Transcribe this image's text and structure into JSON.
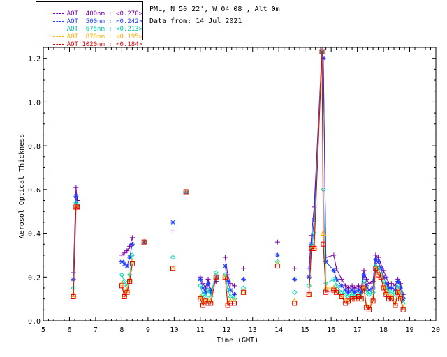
{
  "header": {
    "station": "PML, N 50 22', W 04 08', Alt 0m",
    "date": "Data from: 14 Jul 2021"
  },
  "chart_data": {
    "type": "scatter",
    "title": "",
    "xlabel": "Time (GMT)",
    "ylabel": "Aerosol Optical Thickness",
    "xlim": [
      5,
      20
    ],
    "ylim": [
      0,
      1.25
    ],
    "x_ticks": [
      "5",
      "6",
      "7",
      "8",
      "9",
      "10",
      "11",
      "12",
      "13",
      "14",
      "15",
      "16",
      "17",
      "18",
      "19",
      "20"
    ],
    "y_ticks": [
      "0.0",
      "0.2",
      "0.4",
      "0.6",
      "0.8",
      "1.0",
      "1.2"
    ],
    "grid": false,
    "legend_position": "top-left",
    "x": [
      6.15,
      6.25,
      6.3,
      8.0,
      8.1,
      8.2,
      8.3,
      8.4,
      8.85,
      9.95,
      10.45,
      11.0,
      11.1,
      11.2,
      11.3,
      11.4,
      11.6,
      11.95,
      12.05,
      12.15,
      12.3,
      12.65,
      13.95,
      14.6,
      15.15,
      15.25,
      15.35,
      15.65,
      15.7,
      15.8,
      16.1,
      16.2,
      16.4,
      16.55,
      16.65,
      16.8,
      16.9,
      17.05,
      17.15,
      17.25,
      17.35,
      17.45,
      17.6,
      17.7,
      17.8,
      17.9,
      18.0,
      18.1,
      18.2,
      18.3,
      18.45,
      18.55,
      18.65,
      18.75
    ],
    "series": [
      {
        "name": "AOT  400nm : <0.270>",
        "color": "#7b00a8",
        "marker": "plus",
        "values": [
          0.22,
          0.61,
          0.55,
          0.3,
          0.31,
          0.32,
          0.34,
          0.38,
          0.36,
          0.41,
          0.59,
          0.2,
          0.17,
          0.15,
          0.19,
          0.14,
          0.18,
          0.29,
          0.21,
          0.17,
          0.16,
          0.24,
          0.36,
          0.24,
          0.24,
          0.39,
          0.52,
          1.24,
          1.2,
          0.29,
          0.3,
          0.24,
          0.19,
          0.16,
          0.15,
          0.16,
          0.15,
          0.16,
          0.15,
          0.23,
          0.19,
          0.17,
          0.18,
          0.3,
          0.29,
          0.26,
          0.23,
          0.2,
          0.17,
          0.17,
          0.16,
          0.19,
          0.17,
          0.12
        ]
      },
      {
        "name": "AOT  500nm : <0.242>",
        "color": "#1f3bff",
        "marker": "asterisk",
        "values": [
          0.19,
          0.57,
          0.52,
          0.27,
          0.26,
          0.25,
          0.29,
          0.35,
          0.36,
          0.45,
          0.59,
          0.19,
          0.15,
          0.13,
          0.17,
          0.13,
          0.2,
          0.25,
          0.18,
          0.14,
          0.12,
          0.19,
          0.3,
          0.19,
          0.2,
          0.35,
          0.46,
          1.23,
          1.2,
          0.27,
          0.23,
          0.19,
          0.16,
          0.14,
          0.13,
          0.14,
          0.13,
          0.14,
          0.13,
          0.21,
          0.16,
          0.14,
          0.15,
          0.28,
          0.27,
          0.24,
          0.2,
          0.17,
          0.15,
          0.15,
          0.14,
          0.18,
          0.15,
          0.1
        ]
      },
      {
        "name": "AOT  675nm : <0.213>",
        "color": "#00e0b0",
        "marker": "diamond",
        "values": [
          0.15,
          0.54,
          0.53,
          0.21,
          0.18,
          0.16,
          0.21,
          0.3,
          0.36,
          0.29,
          0.59,
          0.16,
          0.12,
          0.11,
          0.14,
          0.11,
          0.22,
          0.21,
          0.14,
          0.11,
          0.1,
          0.15,
          0.27,
          0.13,
          0.16,
          0.34,
          0.4,
          1.23,
          0.6,
          0.17,
          0.19,
          0.16,
          0.13,
          0.12,
          0.11,
          0.12,
          0.11,
          0.12,
          0.11,
          0.18,
          0.13,
          0.12,
          0.13,
          0.25,
          0.24,
          0.21,
          0.18,
          0.15,
          0.13,
          0.13,
          0.12,
          0.16,
          0.13,
          0.08
        ]
      },
      {
        "name": "AOT  870nm : <0.195>",
        "color": "#ffb000",
        "marker": "triangle",
        "values": [
          0.12,
          0.52,
          0.52,
          0.17,
          0.12,
          0.14,
          0.19,
          0.27,
          0.36,
          0.24,
          0.59,
          0.11,
          0.08,
          0.09,
          0.09,
          0.09,
          0.2,
          0.2,
          0.08,
          0.09,
          0.09,
          0.13,
          0.26,
          0.09,
          0.12,
          0.33,
          0.34,
          1.23,
          0.4,
          0.15,
          0.15,
          0.13,
          0.11,
          0.09,
          0.09,
          0.1,
          0.1,
          0.11,
          0.1,
          0.16,
          0.07,
          0.06,
          0.1,
          0.24,
          0.22,
          0.2,
          0.16,
          0.13,
          0.11,
          0.11,
          0.08,
          0.14,
          0.11,
          0.06
        ]
      },
      {
        "name": "AOT 1020nm : <0.184>",
        "color": "#e00000",
        "marker": "square",
        "values": [
          0.11,
          0.52,
          0.52,
          0.16,
          0.11,
          0.13,
          0.18,
          0.26,
          0.36,
          0.24,
          0.59,
          0.1,
          0.07,
          0.09,
          0.08,
          0.08,
          0.2,
          0.2,
          0.07,
          0.08,
          0.08,
          0.13,
          0.25,
          0.08,
          0.12,
          0.33,
          0.33,
          1.23,
          0.35,
          0.13,
          0.14,
          0.13,
          0.11,
          0.08,
          0.09,
          0.1,
          0.1,
          0.11,
          0.1,
          0.15,
          0.06,
          0.05,
          0.09,
          0.24,
          0.21,
          0.2,
          0.15,
          0.12,
          0.1,
          0.1,
          0.07,
          0.13,
          0.1,
          0.05
        ]
      }
    ]
  }
}
